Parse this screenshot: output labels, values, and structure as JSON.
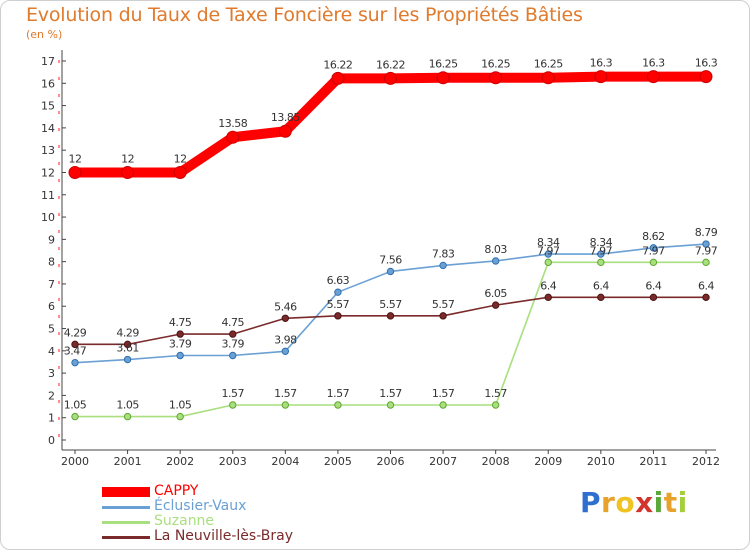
{
  "header": {
    "title": "Evolution du Taux de Taxe Foncière sur les Propriétés Bâties",
    "subtitle": "(en %)"
  },
  "chart_data": {
    "type": "line",
    "title": "Evolution du Taux de Taxe Foncière sur les Propriétés Bâties",
    "ylabel": "(en %)",
    "xlabel": "",
    "categories": [
      "2000",
      "2001",
      "2002",
      "2003",
      "2004",
      "2005",
      "2006",
      "2007",
      "2008",
      "2009",
      "2010",
      "2011",
      "2012"
    ],
    "ylim": [
      0,
      17
    ],
    "yticks": [
      0,
      1,
      2,
      3,
      4,
      5,
      6,
      7,
      8,
      9,
      10,
      11,
      12,
      13,
      14,
      15,
      16,
      17
    ],
    "grid": false,
    "step_lines": true,
    "legend_position": "bottom-left",
    "series": [
      {
        "name": "CAPPY",
        "color": "#ff0000",
        "values": [
          12,
          12,
          12,
          13.58,
          13.85,
          16.22,
          16.22,
          16.25,
          16.25,
          16.25,
          16.3,
          16.3,
          16.3
        ],
        "labels": [
          "12",
          "12",
          "12",
          "13.58",
          "13.85",
          "16.22",
          "16.22",
          "16.25",
          "16.25",
          "16.25",
          "16.3",
          "16.3",
          "16.3"
        ]
      },
      {
        "name": "Éclusier-Vaux",
        "color": "#6aa0d4",
        "values": [
          3.47,
          3.61,
          3.79,
          3.79,
          3.98,
          6.63,
          7.56,
          7.83,
          8.03,
          8.34,
          8.34,
          8.62,
          8.79
        ],
        "labels": [
          "3.47",
          "3.61",
          "3.79",
          "3.79",
          "3.98",
          "6.63",
          "7.56",
          "7.83",
          "8.03",
          "8.34",
          "8.34",
          "8.62",
          "8.79"
        ]
      },
      {
        "name": "Suzanne",
        "color": "#a9df7e",
        "values": [
          1.05,
          1.05,
          1.05,
          1.57,
          1.57,
          1.57,
          1.57,
          1.57,
          1.57,
          7.97,
          7.97,
          7.97,
          7.97
        ],
        "labels": [
          "1.05",
          "1.05",
          "1.05",
          "1.57",
          "1.57",
          "1.57",
          "1.57",
          "1.57",
          "1.57",
          "7.97",
          "7.97",
          "7.97",
          "7.97"
        ]
      },
      {
        "name": "La Neuville-lès-Bray",
        "color": "#7a2a2a",
        "values": [
          4.29,
          4.29,
          4.75,
          4.75,
          5.46,
          5.57,
          5.57,
          5.57,
          6.05,
          6.4,
          6.4,
          6.4,
          6.4
        ],
        "labels": [
          "4.29",
          "4.29",
          "4.75",
          "4.75",
          "5.46",
          "5.57",
          "5.57",
          "5.57",
          "6.05",
          "6.4",
          "6.4",
          "6.4",
          "6.4"
        ]
      }
    ]
  },
  "logo": {
    "letters": [
      "P",
      "r",
      "o",
      "x",
      "i",
      "t",
      "i"
    ],
    "colors": [
      "#2e6fcf",
      "#e8a22b",
      "#f0c322",
      "#d2342e",
      "#5aa83a",
      "#e8a22b",
      "#a4cf3c"
    ]
  }
}
